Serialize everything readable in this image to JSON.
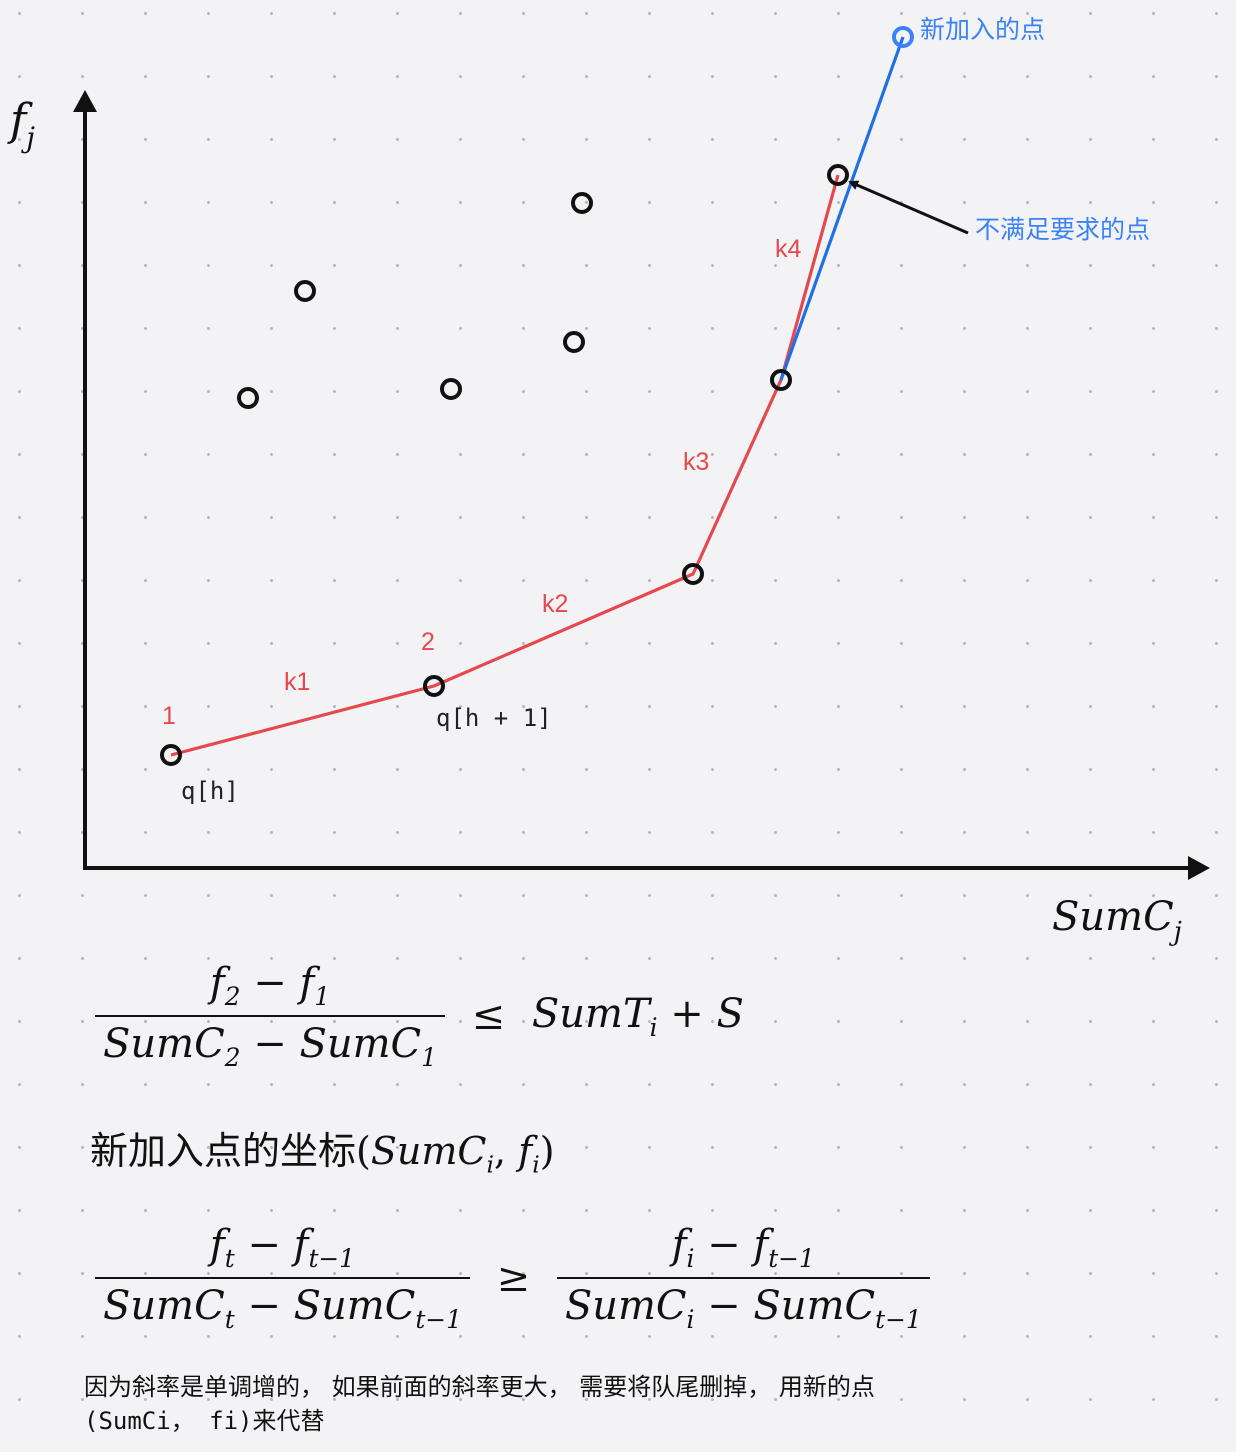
{
  "axes": {
    "y_label_base": "f",
    "y_label_sub": "j",
    "x_label_base": "SumC",
    "x_label_sub": "j"
  },
  "segment_labels": [
    "k1",
    "k2",
    "k3",
    "k4"
  ],
  "point_labels": {
    "p1": "1",
    "p2": "2",
    "q_h": "q[h]",
    "q_h1": "q[h + 1]"
  },
  "callouts": {
    "new_point": "新加入的点",
    "bad_point": "不满足要求的点"
  },
  "formula1": {
    "num": [
      "f",
      "2",
      " − ",
      "f",
      "1"
    ],
    "den": [
      "SumC",
      "2",
      " − ",
      "SumC",
      "1"
    ],
    "rel": "≤",
    "rhs": [
      "SumT",
      "i",
      " + S"
    ]
  },
  "coord_line": {
    "prefix": "新加入点的坐标",
    "open": "(",
    "a": "SumC",
    "a_sub": "i",
    "comma": ", ",
    "b": "f",
    "b_sub": "i",
    "close": ")"
  },
  "formula2": {
    "lnum": [
      "f",
      "t",
      " − ",
      "f",
      "t−1"
    ],
    "lden": [
      "SumC",
      "t",
      " − ",
      "SumC",
      "t−1"
    ],
    "rel": "≥",
    "rnum": [
      "f",
      "i",
      " − ",
      "f",
      "t−1"
    ],
    "rden": [
      "SumC",
      "i",
      " − ",
      "SumC",
      "t−1"
    ]
  },
  "note_line1": "因为斜率是单调增的， 如果前面的斜率更大， 需要将队尾删掉， 用新的点",
  "note_line2": "(SumCi， fi)来代替",
  "colors": {
    "hull": "#e5484d",
    "new_line": "#1f6fe5",
    "blue_text": "#3b82f6",
    "axis": "#111111"
  }
}
